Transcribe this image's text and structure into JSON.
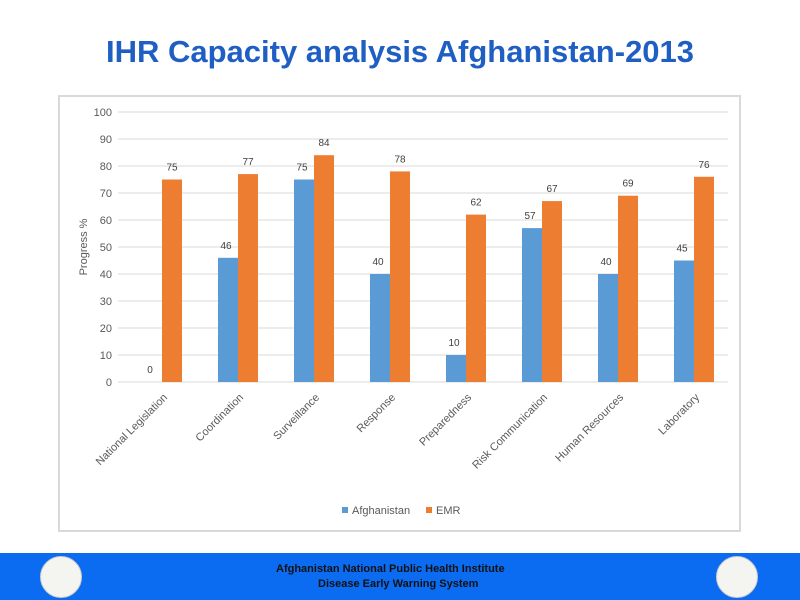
{
  "title": "IHR Capacity analysis Afghanistan-2013",
  "footer": {
    "line1": "Afghanistan National Public Health Institute",
    "line2": "Disease Early Warning System"
  },
  "chart_data": {
    "type": "bar",
    "title": "",
    "xlabel": "",
    "ylabel": "Progress %",
    "ylim": [
      0,
      100
    ],
    "yticks": [
      0,
      10,
      20,
      30,
      40,
      50,
      60,
      70,
      80,
      90,
      100
    ],
    "grid": true,
    "legend": "bottom",
    "categories": [
      "National Legislation",
      "Coordination",
      "Surveillance",
      "Response",
      "Preparedness",
      "Risk Communication",
      "Human Resources",
      "Laboratory"
    ],
    "series": [
      {
        "name": "Afghanistan",
        "color": "#5b9bd5",
        "values": [
          0,
          46,
          75,
          40,
          10,
          57,
          40,
          45
        ]
      },
      {
        "name": "EMR",
        "color": "#ed7d31",
        "values": [
          75,
          77,
          84,
          78,
          62,
          67,
          69,
          76
        ]
      }
    ]
  }
}
